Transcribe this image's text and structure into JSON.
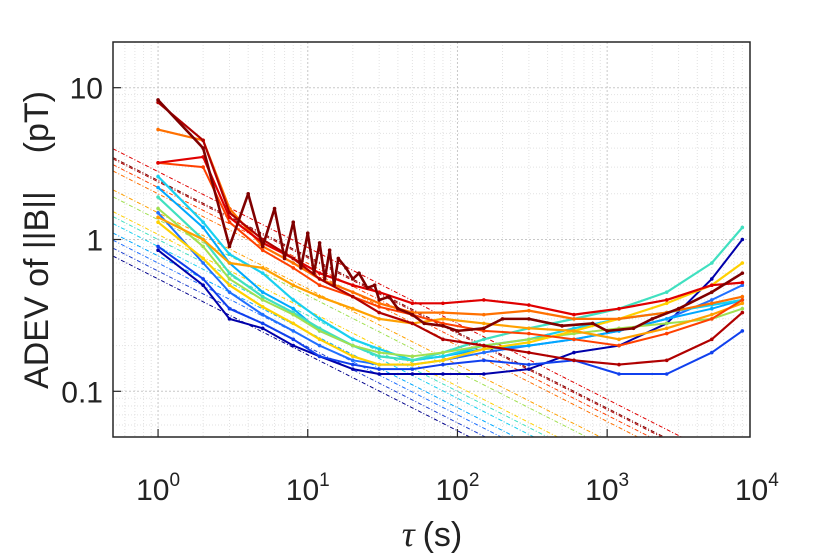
{
  "chart_data": {
    "type": "line",
    "title": "",
    "xlabel": {
      "symbol": "τ",
      "unit": "(s)"
    },
    "ylabel": "ADEV of ||B||    (pT)",
    "xscale": "log",
    "yscale": "log",
    "xlim": [
      0.5,
      9000
    ],
    "ylim": [
      0.05,
      20
    ],
    "grid": true,
    "minor_grid": true,
    "legend": "none",
    "x_ticks": [
      {
        "value": 1,
        "base": "10",
        "exp": "0"
      },
      {
        "value": 10,
        "base": "10",
        "exp": "1"
      },
      {
        "value": 100,
        "base": "10",
        "exp": "2"
      },
      {
        "value": 1000,
        "base": "10",
        "exp": "3"
      },
      {
        "value": 10000,
        "base": "10",
        "exp": "4"
      }
    ],
    "y_ticks": [
      {
        "value": 0.1,
        "label": "0.1"
      },
      {
        "value": 1,
        "label": "1"
      },
      {
        "value": 10,
        "label": "10"
      }
    ],
    "series": [
      {
        "color": "#0000aa",
        "width": 2,
        "x": [
          1,
          2,
          3,
          5,
          8,
          12,
          20,
          30,
          50,
          80,
          150,
          300,
          600,
          1200,
          2500,
          5000,
          8000
        ],
        "y": [
          0.85,
          0.5,
          0.3,
          0.26,
          0.2,
          0.17,
          0.14,
          0.13,
          0.13,
          0.13,
          0.13,
          0.14,
          0.18,
          0.2,
          0.28,
          0.55,
          1.0
        ]
      },
      {
        "color": "#1040ee",
        "width": 2,
        "x": [
          1,
          2,
          3,
          5,
          8,
          12,
          20,
          30,
          50,
          80,
          150,
          300,
          600,
          1200,
          2500,
          5000,
          8000
        ],
        "y": [
          0.9,
          0.55,
          0.35,
          0.28,
          0.22,
          0.17,
          0.15,
          0.14,
          0.14,
          0.15,
          0.16,
          0.15,
          0.16,
          0.13,
          0.13,
          0.18,
          0.25
        ]
      },
      {
        "color": "#2070ff",
        "width": 2,
        "x": [
          1,
          2,
          3,
          5,
          8,
          12,
          20,
          30,
          50,
          80,
          150,
          300,
          600,
          1200,
          2500,
          5000,
          8000
        ],
        "y": [
          1.5,
          0.7,
          0.45,
          0.32,
          0.25,
          0.2,
          0.16,
          0.15,
          0.15,
          0.16,
          0.18,
          0.2,
          0.22,
          0.25,
          0.3,
          0.4,
          0.5
        ]
      },
      {
        "color": "#00a8ff",
        "width": 2,
        "x": [
          1,
          2,
          3,
          5,
          8,
          12,
          20,
          30,
          50,
          80,
          150,
          300,
          600,
          1200,
          2500,
          5000,
          8000
        ],
        "y": [
          2.2,
          1.2,
          0.7,
          0.45,
          0.35,
          0.25,
          0.2,
          0.17,
          0.16,
          0.17,
          0.19,
          0.2,
          0.22,
          0.25,
          0.3,
          0.35,
          0.4
        ]
      },
      {
        "color": "#18d0f0",
        "width": 2.2,
        "x": [
          1,
          2,
          3,
          5,
          8,
          12,
          20,
          30,
          50,
          80,
          150,
          300,
          600,
          1200,
          2500,
          5000,
          8000
        ],
        "y": [
          2.6,
          1.3,
          0.8,
          0.6,
          0.4,
          0.3,
          0.22,
          0.19,
          0.16,
          0.17,
          0.2,
          0.22,
          0.26,
          0.3,
          0.33,
          0.37,
          0.4
        ]
      },
      {
        "color": "#40e0c0",
        "width": 2.2,
        "x": [
          1,
          2,
          3,
          5,
          8,
          12,
          20,
          30,
          50,
          80,
          150,
          300,
          600,
          1200,
          2500,
          5000,
          8000
        ],
        "y": [
          1.9,
          1.0,
          0.6,
          0.42,
          0.33,
          0.26,
          0.2,
          0.17,
          0.16,
          0.18,
          0.22,
          0.26,
          0.3,
          0.35,
          0.45,
          0.7,
          1.2
        ]
      },
      {
        "color": "#a0e050",
        "width": 2,
        "x": [
          1,
          2,
          3,
          5,
          8,
          12,
          20,
          30,
          50,
          80,
          150,
          300,
          600,
          1200,
          2500,
          5000,
          8000
        ],
        "y": [
          1.6,
          0.9,
          0.55,
          0.4,
          0.32,
          0.25,
          0.2,
          0.18,
          0.17,
          0.18,
          0.2,
          0.22,
          0.24,
          0.26,
          0.28,
          0.3,
          0.35
        ]
      },
      {
        "color": "#ffd000",
        "width": 2.2,
        "x": [
          1,
          2,
          3,
          5,
          8,
          12,
          20,
          30,
          50,
          80,
          150,
          300,
          600,
          1200,
          2500,
          5000,
          8000
        ],
        "y": [
          1.3,
          0.75,
          0.5,
          0.36,
          0.28,
          0.22,
          0.17,
          0.15,
          0.15,
          0.16,
          0.19,
          0.21,
          0.25,
          0.3,
          0.38,
          0.5,
          0.7
        ]
      },
      {
        "color": "#ffa000",
        "width": 2.2,
        "x": [
          1,
          2,
          3,
          5,
          8,
          12,
          20,
          30,
          50,
          80,
          150,
          300,
          600,
          1200,
          2500,
          5000,
          8000
        ],
        "y": [
          1.4,
          1.0,
          0.7,
          0.65,
          0.5,
          0.42,
          0.35,
          0.3,
          0.28,
          0.3,
          0.28,
          0.26,
          0.25,
          0.22,
          0.26,
          0.32,
          0.38
        ]
      },
      {
        "color": "#ff7000",
        "width": 2.2,
        "x": [
          1,
          2,
          3,
          5,
          8,
          12,
          20,
          30,
          50,
          80,
          150,
          300,
          600,
          1200,
          2500,
          5000,
          8000
        ],
        "y": [
          5.3,
          4.5,
          1.6,
          0.9,
          0.7,
          0.55,
          0.45,
          0.38,
          0.33,
          0.33,
          0.32,
          0.34,
          0.3,
          0.3,
          0.33,
          0.38,
          0.42
        ]
      },
      {
        "color": "#ff4000",
        "width": 2,
        "x": [
          1,
          2,
          3,
          5,
          8,
          12,
          20,
          30,
          50,
          80,
          150,
          300,
          600,
          1200,
          2500,
          5000,
          8000
        ],
        "y": [
          3.2,
          3.0,
          1.3,
          0.85,
          0.65,
          0.5,
          0.42,
          0.36,
          0.32,
          0.28,
          0.25,
          0.24,
          0.22,
          0.2,
          0.24,
          0.3,
          0.4
        ]
      },
      {
        "color": "#e00000",
        "width": 2.2,
        "x": [
          1,
          2,
          3,
          5,
          8,
          12,
          20,
          30,
          50,
          80,
          150,
          300,
          600,
          1200,
          2500,
          5000,
          8000
        ],
        "y": [
          3.2,
          3.5,
          1.4,
          0.95,
          0.75,
          0.6,
          0.5,
          0.45,
          0.38,
          0.38,
          0.4,
          0.37,
          0.32,
          0.35,
          0.4,
          0.5,
          0.52
        ]
      },
      {
        "color": "#b00000",
        "width": 2.2,
        "x": [
          1,
          2,
          3,
          5,
          8,
          12,
          20,
          30,
          50,
          80,
          150,
          300,
          600,
          1200,
          2500,
          5000,
          8000
        ],
        "y": [
          8.0,
          4.5,
          1.5,
          1.0,
          0.75,
          0.55,
          0.42,
          0.33,
          0.28,
          0.22,
          0.2,
          0.18,
          0.16,
          0.15,
          0.16,
          0.22,
          0.33
        ]
      },
      {
        "color": "#800000",
        "width": 2.6,
        "x": [
          1,
          2,
          3,
          4,
          5,
          6,
          7,
          8,
          9,
          10,
          11,
          12,
          13,
          14,
          15,
          16,
          18,
          20,
          22,
          25,
          28,
          30,
          35,
          40,
          50,
          60,
          80,
          100,
          150,
          200,
          300,
          500,
          800,
          1000,
          1500,
          2000,
          3000,
          5000,
          8000
        ],
        "y": [
          8.3,
          4.0,
          0.9,
          2.0,
          0.9,
          1.6,
          0.75,
          1.3,
          0.65,
          1.1,
          0.6,
          0.95,
          0.55,
          0.85,
          0.5,
          0.75,
          0.65,
          0.55,
          0.6,
          0.48,
          0.5,
          0.4,
          0.42,
          0.35,
          0.32,
          0.28,
          0.27,
          0.25,
          0.26,
          0.3,
          0.3,
          0.27,
          0.28,
          0.25,
          0.26,
          0.3,
          0.35,
          0.45,
          0.6
        ]
      }
    ],
    "fit_lines": [
      {
        "color": "#00008b",
        "a": 0.55
      },
      {
        "color": "#1e40d0",
        "a": 0.62
      },
      {
        "color": "#2070ff",
        "a": 0.7
      },
      {
        "color": "#00a8ff",
        "a": 0.78
      },
      {
        "color": "#18d0f0",
        "a": 0.9
      },
      {
        "color": "#40e0c0",
        "a": 1.0
      },
      {
        "color": "#a0e050",
        "a": 1.35
      },
      {
        "color": "#ffd000",
        "a": 1.08
      },
      {
        "color": "#ffa000",
        "a": 1.5
      },
      {
        "color": "#ff7000",
        "a": 2.0
      },
      {
        "color": "#ff4000",
        "a": 2.2
      },
      {
        "color": "#e00000",
        "a": 2.8
      },
      {
        "color": "#b00000",
        "a": 2.4
      },
      {
        "color": "#800000",
        "a": 2.45
      }
    ]
  }
}
